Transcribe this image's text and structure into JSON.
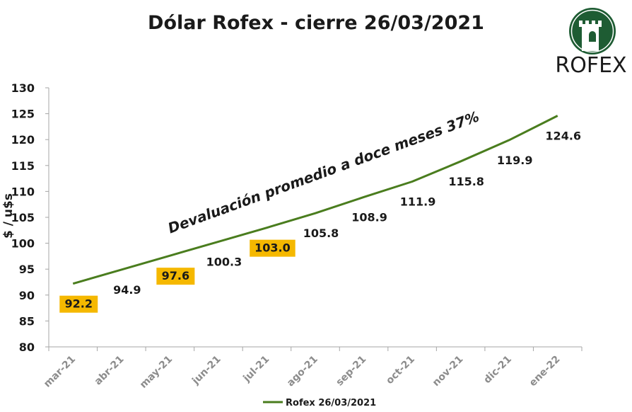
{
  "chart_data": {
    "type": "line",
    "title": "Dólar Rofex - cierre 26/03/2021",
    "ylabel": "$ / u$s",
    "xlabel": "",
    "categories": [
      "mar-21",
      "abr-21",
      "may-21",
      "jun-21",
      "jul-21",
      "ago-21",
      "sep-21",
      "oct-21",
      "nov-21",
      "dic-21",
      "ene-22"
    ],
    "series": [
      {
        "name": "Rofex 26/03/2021",
        "values": [
          92.2,
          94.9,
          97.6,
          100.3,
          103.0,
          105.8,
          108.9,
          111.9,
          115.8,
          119.9,
          124.6
        ]
      }
    ],
    "data_labels": [
      "92.2",
      "94.9",
      "97.6",
      "100.3",
      "103.0",
      "105.8",
      "108.9",
      "111.9",
      "115.8",
      "119.9",
      "124.6"
    ],
    "highlighted_labels": [
      0,
      2,
      4
    ],
    "ylim": [
      80,
      130
    ],
    "yticks": [
      "80",
      "85",
      "90",
      "95",
      "100",
      "105",
      "110",
      "115",
      "120",
      "125",
      "130"
    ],
    "grid": false,
    "legend_position": "bottom",
    "annotation": "Devaluación promedio a doce meses 37%",
    "colors": {
      "line": "#4a7d1e",
      "highlight": "#f5b800",
      "logo_green": "#1e5c33",
      "axis": "#a6a6a6"
    }
  },
  "logo": {
    "text": "ROFEX"
  }
}
